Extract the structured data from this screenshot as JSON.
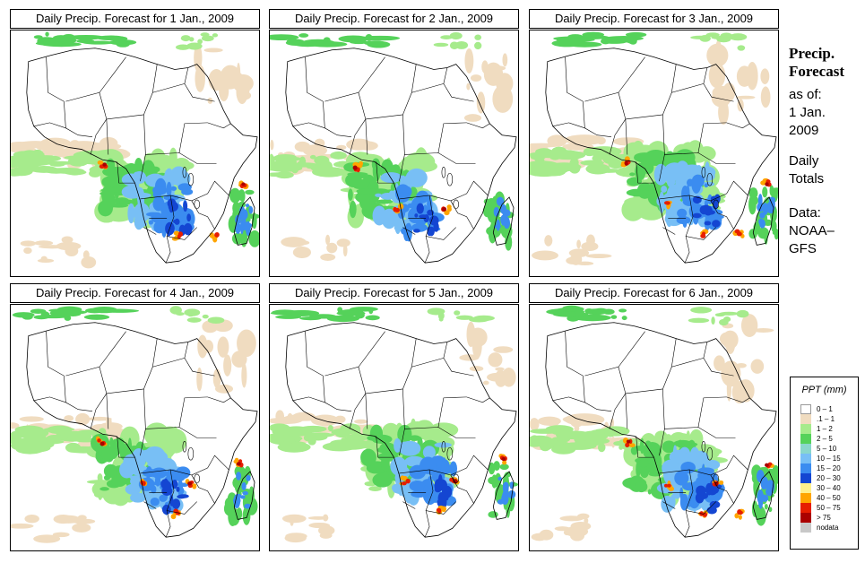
{
  "panels": [
    {
      "title": "Daily Precip. Forecast for  1 Jan., 2009"
    },
    {
      "title": "Daily Precip. Forecast for  2 Jan., 2009"
    },
    {
      "title": "Daily Precip. Forecast for  3 Jan., 2009"
    },
    {
      "title": "Daily Precip. Forecast for  4 Jan., 2009"
    },
    {
      "title": "Daily Precip. Forecast for  5 Jan., 2009"
    },
    {
      "title": "Daily Precip. Forecast for  6 Jan., 2009"
    }
  ],
  "side": {
    "heading_line1": "Precip.",
    "heading_line2": "Forecast",
    "asof": "as of:",
    "date_line1": "1 Jan.",
    "date_line2": "2009",
    "totals_line1": "Daily",
    "totals_line2": "Totals",
    "data_line1": "Data:",
    "data_line2": "NOAA–",
    "data_line3": "GFS"
  },
  "legend": {
    "title": "PPT (mm)",
    "items": [
      {
        "label": "0 – 1",
        "color": "#ffffff"
      },
      {
        "label": ".1 – 1",
        "color": "#f0dcc0"
      },
      {
        "label": "1 – 2",
        "color": "#a6eb8c"
      },
      {
        "label": "2 – 5",
        "color": "#55d25a"
      },
      {
        "label": "5 – 10",
        "color": "#8ad7cc"
      },
      {
        "label": "10 – 15",
        "color": "#78bff5"
      },
      {
        "label": "15 – 20",
        "color": "#3b8cf0"
      },
      {
        "label": "20 – 30",
        "color": "#1446d2"
      },
      {
        "label": "30 – 40",
        "color": "#fff08c"
      },
      {
        "label": "40 – 50",
        "color": "#ffa500"
      },
      {
        "label": "50 – 75",
        "color": "#e61e00"
      },
      {
        "label": "> 75",
        "color": "#aa0000"
      },
      {
        "label": "nodata",
        "color": "#c8c8c8"
      }
    ]
  }
}
